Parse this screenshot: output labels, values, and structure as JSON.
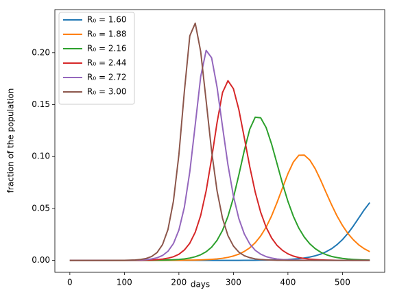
{
  "chart_data": {
    "type": "line",
    "xlabel": "days",
    "ylabel": "fraction of the population",
    "x": [
      0,
      50,
      100,
      110,
      120,
      130,
      140,
      150,
      160,
      170,
      180,
      190,
      200,
      210,
      220,
      230,
      240,
      250,
      260,
      270,
      280,
      290,
      300,
      310,
      320,
      330,
      340,
      350,
      360,
      370,
      380,
      390,
      400,
      410,
      420,
      430,
      440,
      450,
      460,
      470,
      480,
      490,
      500,
      510,
      520,
      530,
      540,
      550
    ],
    "series": [
      {
        "name": "R₀ = 1.60",
        "color": "#1f77b4",
        "values": [
          0,
          0,
          0,
          0,
          0,
          0,
          0,
          0,
          0,
          0,
          0,
          0,
          0,
          0,
          0,
          0,
          0,
          0,
          0,
          0,
          0,
          0,
          0,
          0,
          0.0001,
          0.0001,
          0.0001,
          0.0002,
          0.0002,
          0.0003,
          0.0004,
          0.0006,
          0.0008,
          0.0012,
          0.0016,
          0.0023,
          0.0032,
          0.0044,
          0.006,
          0.0083,
          0.0112,
          0.0151,
          0.02,
          0.026,
          0.0331,
          0.0409,
          0.0487,
          0.0556
        ]
      },
      {
        "name": "R₀ = 1.88",
        "color": "#ff7f0e",
        "values": [
          0,
          0,
          0,
          0,
          0,
          0,
          0,
          0,
          0,
          0,
          0.0001,
          0.0001,
          0.0001,
          0.0002,
          0.0002,
          0.0003,
          0.0005,
          0.0007,
          0.001,
          0.0014,
          0.002,
          0.0029,
          0.0042,
          0.006,
          0.0086,
          0.0121,
          0.017,
          0.0235,
          0.032,
          0.0428,
          0.0557,
          0.0697,
          0.0835,
          0.0948,
          0.1012,
          0.1014,
          0.0967,
          0.0883,
          0.0773,
          0.0653,
          0.0536,
          0.0428,
          0.0336,
          0.0259,
          0.0198,
          0.0149,
          0.0112,
          0.0084
        ]
      },
      {
        "name": "R₀ = 2.16",
        "color": "#2ca02c",
        "values": [
          0,
          0,
          0,
          0,
          0,
          0,
          0.0001,
          0.0001,
          0.0002,
          0.0003,
          0.0004,
          0.0006,
          0.0009,
          0.0014,
          0.0022,
          0.0035,
          0.0054,
          0.0083,
          0.0127,
          0.0193,
          0.0289,
          0.0424,
          0.0603,
          0.0824,
          0.1059,
          0.1264,
          0.1379,
          0.1373,
          0.1279,
          0.112,
          0.0931,
          0.074,
          0.0568,
          0.0424,
          0.031,
          0.0224,
          0.016,
          0.0113,
          0.0079,
          0.0055,
          0.0038,
          0.0027,
          0.0019,
          0.0013,
          0.0009,
          0.0006,
          0.0004,
          0.0003
        ]
      },
      {
        "name": "R₀ = 2.44",
        "color": "#d62728",
        "values": [
          0,
          0,
          0,
          0,
          0.0001,
          0.0001,
          0.0003,
          0.0004,
          0.0007,
          0.0012,
          0.0021,
          0.0035,
          0.0059,
          0.01,
          0.0165,
          0.0271,
          0.0433,
          0.067,
          0.0981,
          0.1327,
          0.1616,
          0.173,
          0.1653,
          0.1451,
          0.118,
          0.0902,
          0.0657,
          0.0463,
          0.0319,
          0.0216,
          0.0144,
          0.0096,
          0.0063,
          0.0041,
          0.0027,
          0.0018,
          0.0012,
          0.0008,
          0.0005,
          0.0003,
          0.0002,
          0.0001,
          0.0001,
          0.0001,
          0,
          0,
          0,
          0
        ]
      },
      {
        "name": "R₀ = 2.72",
        "color": "#9467bd",
        "values": [
          0,
          0,
          0.0001,
          0.0001,
          0.0002,
          0.0004,
          0.0007,
          0.0014,
          0.0025,
          0.0047,
          0.0088,
          0.0162,
          0.0292,
          0.0511,
          0.0853,
          0.1307,
          0.177,
          0.2022,
          0.1951,
          0.1668,
          0.1288,
          0.0919,
          0.0619,
          0.0401,
          0.0254,
          0.0158,
          0.0097,
          0.006,
          0.0036,
          0.0022,
          0.0013,
          0.0008,
          0.0005,
          0.0003,
          0.0002,
          0.0001,
          0.0001,
          0,
          0,
          0,
          0,
          0,
          0,
          0,
          0,
          0,
          0,
          0
        ]
      },
      {
        "name": "R₀ = 3.00",
        "color": "#8c564b",
        "values": [
          0,
          0,
          0.0001,
          0.0002,
          0.0004,
          0.0009,
          0.0018,
          0.0037,
          0.0075,
          0.0152,
          0.0298,
          0.0571,
          0.1018,
          0.1625,
          0.2162,
          0.2284,
          0.201,
          0.1536,
          0.1052,
          0.0669,
          0.0405,
          0.0238,
          0.0138,
          0.0079,
          0.0045,
          0.0026,
          0.0014,
          0.0008,
          0.0005,
          0.0003,
          0.0001,
          0.0001,
          0,
          0,
          0,
          0,
          0,
          0,
          0,
          0,
          0,
          0,
          0,
          0,
          0,
          0,
          0,
          0
        ]
      }
    ],
    "xlim": [
      -27.5,
      577.5
    ],
    "xticks": [
      0,
      100,
      200,
      300,
      400,
      500
    ],
    "ylim": [
      -0.0115,
      0.2415
    ],
    "yticks": [
      {
        "value": 0,
        "label": "0.00"
      },
      {
        "value": 0.05,
        "label": "0.05"
      },
      {
        "value": 0.1,
        "label": "0.10"
      },
      {
        "value": 0.15,
        "label": "0.15"
      },
      {
        "value": 0.2,
        "label": "0.20"
      }
    ],
    "legend": "upper left"
  }
}
